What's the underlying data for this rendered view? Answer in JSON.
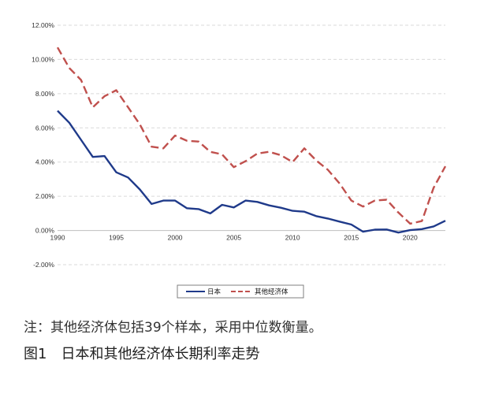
{
  "chart_data": {
    "type": "line",
    "title": "",
    "xlabel": "",
    "ylabel": "",
    "xlim": [
      1990,
      2023
    ],
    "ylim": [
      -2,
      12
    ],
    "x_ticks": [
      1990,
      1995,
      2000,
      2005,
      2010,
      2015,
      2020
    ],
    "y_ticks": [
      "12.00%",
      "10.00%",
      "8.00%",
      "6.00%",
      "4.00%",
      "2.00%",
      "0.00%",
      "-2.00%"
    ],
    "y_tick_values": [
      12,
      10,
      8,
      6,
      4,
      2,
      0,
      -2
    ],
    "grid": true,
    "legend": "bottom",
    "x": [
      1990,
      1991,
      1992,
      1993,
      1994,
      1995,
      1996,
      1997,
      1998,
      1999,
      2000,
      2001,
      2002,
      2003,
      2004,
      2005,
      2006,
      2007,
      2008,
      2009,
      2010,
      2011,
      2012,
      2013,
      2014,
      2015,
      2016,
      2017,
      2018,
      2019,
      2020,
      2021,
      2022,
      2023
    ],
    "series": [
      {
        "name": "日本",
        "color": "#1f3a8a",
        "style": "solid",
        "values": [
          7.0,
          6.3,
          5.3,
          4.3,
          4.35,
          3.4,
          3.1,
          2.4,
          1.55,
          1.75,
          1.75,
          1.3,
          1.25,
          1.0,
          1.5,
          1.35,
          1.75,
          1.67,
          1.47,
          1.33,
          1.15,
          1.1,
          0.84,
          0.7,
          0.52,
          0.35,
          -0.07,
          0.05,
          0.06,
          -0.12,
          0.02,
          0.08,
          0.24,
          0.57
        ]
      },
      {
        "name": "其他经济体",
        "color": "#c0504d",
        "style": "dashed",
        "values": [
          10.7,
          9.5,
          8.8,
          7.2,
          7.85,
          8.2,
          7.2,
          6.2,
          4.9,
          4.8,
          5.55,
          5.25,
          5.2,
          4.6,
          4.45,
          3.7,
          4.05,
          4.5,
          4.6,
          4.4,
          4.0,
          4.8,
          4.1,
          3.55,
          2.75,
          1.75,
          1.4,
          1.75,
          1.8,
          1.05,
          0.4,
          0.55,
          2.5,
          3.75
        ]
      }
    ]
  },
  "note": "注：其他经济体包括39个样本，采用中位数衡量。",
  "caption": "图1　日本和其他经济体长期利率走势"
}
